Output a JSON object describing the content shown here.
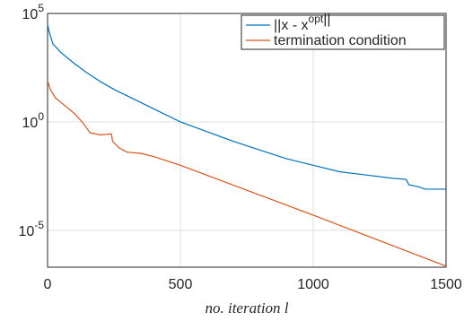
{
  "chart_data": {
    "type": "line",
    "x_label": "no. iteration l",
    "xlim": [
      0,
      1500
    ],
    "xticks": [
      0,
      500,
      1000,
      1500
    ],
    "ylim": [
      2e-07,
      100000
    ],
    "log_y": true,
    "yticks": [
      {
        "value": 1e-05,
        "label": "10^-5"
      },
      {
        "value": 1,
        "label": "10^0"
      },
      {
        "value": 100000,
        "label": "10^5"
      }
    ],
    "grid": true,
    "legend": "top-right",
    "series": [
      {
        "name": "||x - x^opt||",
        "color": "#0072bd",
        "x": [
          0,
          5,
          20,
          50,
          100,
          150,
          200,
          250,
          300,
          400,
          500,
          600,
          700,
          800,
          900,
          1000,
          1100,
          1200,
          1300,
          1350,
          1360,
          1400,
          1420,
          1500
        ],
        "values": [
          31623,
          15849,
          3981,
          1585,
          501,
          178,
          70.8,
          31.6,
          15.8,
          3.98,
          1,
          0.355,
          0.126,
          0.0501,
          0.02,
          0.01,
          0.005,
          0.00355,
          0.00251,
          0.00224,
          0.00126,
          0.001,
          0.000794,
          0.000794
        ]
      },
      {
        "name": "termination condition",
        "color": "#d95319",
        "x": [
          0,
          10,
          30,
          60,
          100,
          130,
          160,
          200,
          240,
          245,
          270,
          300,
          350,
          400,
          500,
          1000,
          1500
        ],
        "values": [
          79.4,
          31.6,
          12.6,
          6.31,
          2.51,
          1,
          0.316,
          0.251,
          0.282,
          0.126,
          0.0631,
          0.0398,
          0.0355,
          0.0251,
          0.01,
          5.01e-05,
          2.24e-07
        ]
      }
    ]
  }
}
